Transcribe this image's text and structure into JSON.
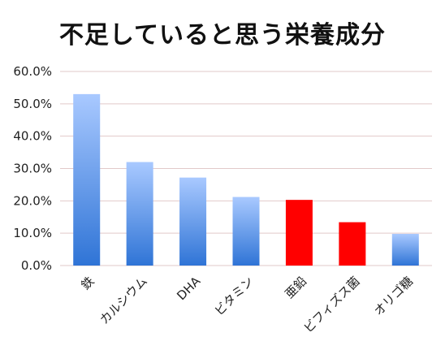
{
  "chart_data": {
    "type": "bar",
    "title": "不足していると思う栄養成分",
    "categories": [
      "鉄",
      "カルシウム",
      "DHA",
      "ビタミン",
      "亜鉛",
      "ビフィズス菌",
      "オリゴ糖"
    ],
    "values": [
      53,
      32,
      27.2,
      21.2,
      20.3,
      13.4,
      9.8
    ],
    "highlighted": [
      false,
      false,
      false,
      false,
      true,
      true,
      false
    ],
    "ylim": [
      0,
      60
    ],
    "yticks": [
      0,
      10,
      20,
      30,
      40,
      50,
      60
    ],
    "ytick_labels": [
      "0.0%",
      "10.0%",
      "20.0%",
      "30.0%",
      "40.0%",
      "50.0%",
      "60.0%"
    ],
    "grid": true,
    "colors": {
      "bar_top": "#a9c9ff",
      "bar_bottom": "#2f74d6",
      "highlight": "#ff0000",
      "grid": "#e2c9c9"
    }
  }
}
